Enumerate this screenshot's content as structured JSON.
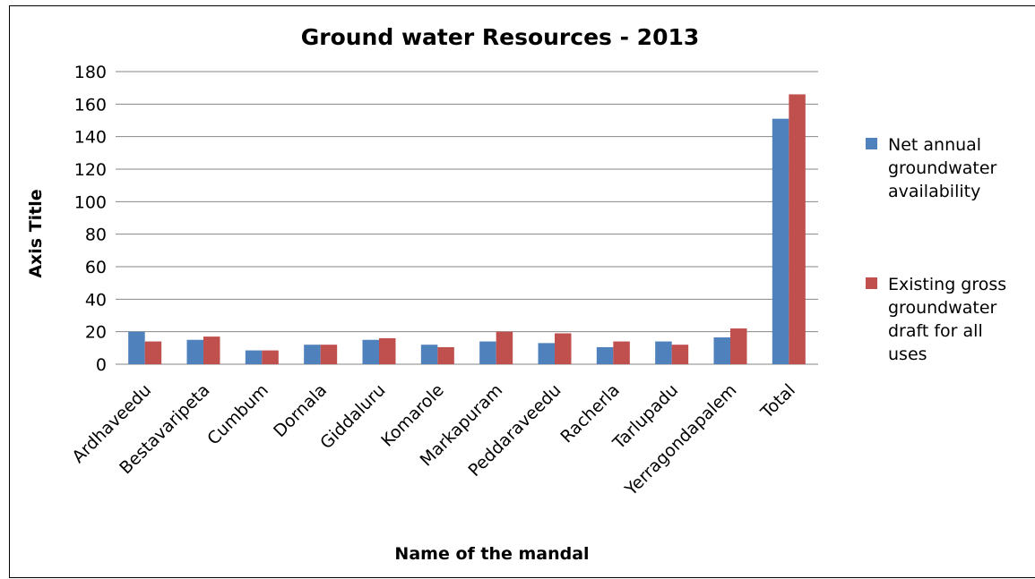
{
  "chart_data": {
    "type": "bar",
    "title": "Ground water Resources - 2013",
    "xlabel": "Name of the mandal",
    "ylabel": "Axis Title",
    "ylim": [
      0,
      180
    ],
    "yticks": [
      0,
      20,
      40,
      60,
      80,
      100,
      120,
      140,
      160,
      180
    ],
    "grid": true,
    "legend_position": "right",
    "categories": [
      "Ardhaveedu",
      "Bestavaripeta",
      "Cumbum",
      "Dornala",
      "Giddaluru",
      "Komarole",
      "Markapuram",
      "Peddaraveedu",
      "Racherla",
      "Tarlupadu",
      "Yerragondapalem",
      "Total"
    ],
    "series": [
      {
        "name": "Net annual groundwater availability",
        "legend_lines": [
          "Net annual",
          "groundwater",
          "availability"
        ],
        "color": "#4F81BD",
        "values": [
          20,
          15,
          8.5,
          12,
          15,
          12,
          14,
          13,
          10.5,
          14,
          16.5,
          151
        ]
      },
      {
        "name": "Existing gross groundwater draft for all uses",
        "legend_lines": [
          "Existing gross",
          "groundwater",
          "draft for all",
          "uses"
        ],
        "color": "#C0504D",
        "values": [
          14,
          17,
          8.5,
          12,
          16,
          10.5,
          20,
          19,
          14,
          12,
          22,
          166
        ]
      }
    ]
  }
}
